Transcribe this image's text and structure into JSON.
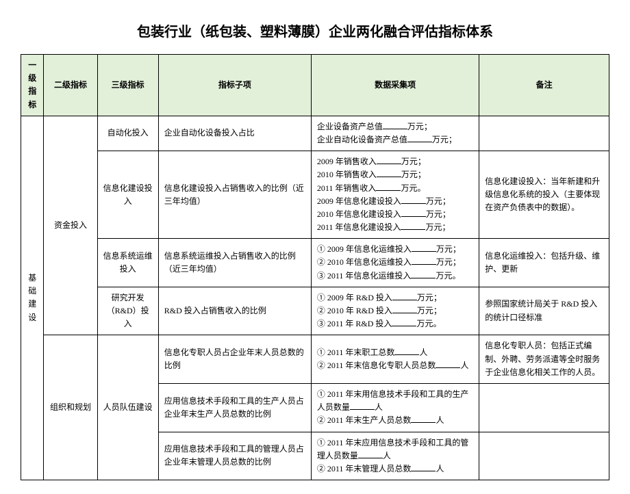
{
  "title": "包装行业（纸包装、塑料薄膜）企业两化融合评估指标体系",
  "headers": {
    "c1": "一级指标",
    "c2": "二级指标",
    "c3": "三级指标",
    "c4": "指标子项",
    "c5": "数据采集项",
    "c6": "备注"
  },
  "level1": "基础建设",
  "level2_1": "资金投入",
  "level2_2": "组织和规划",
  "rows": [
    {
      "l3": "自动化投入",
      "item": "企业自动化设备投入占比",
      "data": "企业设备资产总值______万元；\n企业自动化设备资产总值______万元；",
      "note": ""
    },
    {
      "l3": "信息化建设投入",
      "item": "信息化建设投入占销售收入的比例（近三年均值）",
      "data": "2009 年销售收入______万元；\n2010 年销售收入______万元；\n2011 年销售收入______万元。\n2009 年信息化建设投入______万元；\n2010 年信息化建设投入______万元；\n2011 年信息化建设投入______万元；",
      "note": "信息化建设投入：当年新建和升级信息化系统的投入（主要体现在资产负债表中的数据）。"
    },
    {
      "l3": "信息系统运维投入",
      "item": "信息系统运维投入占销售收入的比例（近三年均值）",
      "data": "① 2009 年信息化运维投入______万元；\n② 2010 年信息化运维投入______万元；\n③ 2011 年信息化运维投入______万元。",
      "note": "信息化运维投入：包括升级、维护、更新"
    },
    {
      "l3": "研究开发（R&D）投入",
      "item": "R&D 投入占销售收入的比例",
      "data": "① 2009 年 R&D 投入______万元；\n② 2010 年 R&D 投入______万元；\n③ 2011 年 R&D 投入______万元。",
      "note": "参照国家统计局关于 R&D 投入的统计口径标准"
    },
    {
      "l3": "人员队伍建设",
      "item": "信息化专职人员占企业年末人员总数的比例",
      "data": "① 2011 年末职工总数______人\n② 2011 年末信息化专职人员总数______人",
      "note": "信息化专职人员：包括正式编制、外聘、劳务派遣等全时服务于企业信息化相关工作的人员。"
    },
    {
      "l3": "",
      "item": "应用信息技术手段和工具的生产人员占企业年末生产人员总数的比例",
      "data": "① 2011 年末用信息技术手段和工具的生产人员数量______人\n② 2011 年末生产人员总数______人",
      "note": ""
    },
    {
      "l3": "",
      "item": "应用信息技术手段和工具的管理人员占企业年末管理人员总数的比例",
      "data": "① 2011 年末应用信息技术手段和工具的管理人员数量______人\n② 2011 年末管理人员总数______人",
      "note": ""
    }
  ]
}
